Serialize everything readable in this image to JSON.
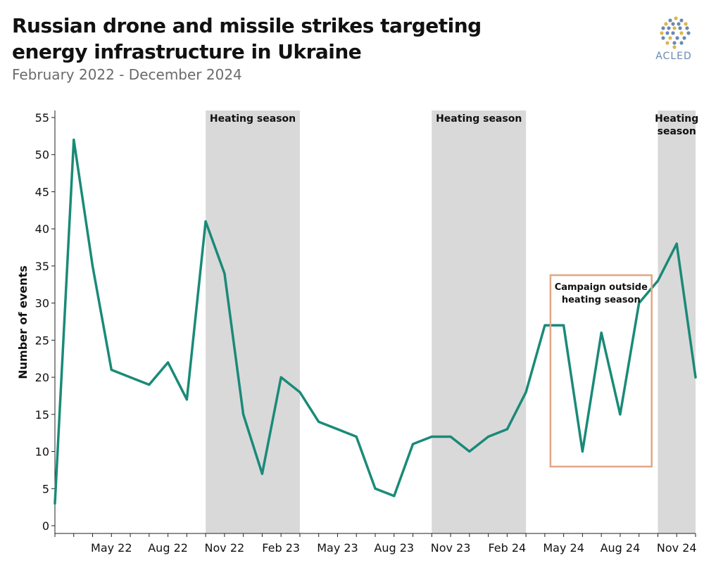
{
  "header": {
    "title": "Russian drone and missile strikes targeting energy infrastructure in Ukraine",
    "subtitle": "February 2022 - December 2024"
  },
  "logo": {
    "text": "ACLED"
  },
  "colors": {
    "line": "#1a8a78",
    "band": "#d9d9d9",
    "box": "#e3a684",
    "logo_blue": "#6a8bb0",
    "logo_gold": "#e0b44a"
  },
  "chart_data": {
    "type": "line",
    "title": "Russian drone and missile strikes targeting energy infrastructure in Ukraine",
    "subtitle": "February 2022 - December 2024",
    "ylabel": "Number of events",
    "ylim": [
      0,
      55
    ],
    "yticks": [
      0,
      5,
      10,
      15,
      20,
      25,
      30,
      35,
      40,
      45,
      50,
      55
    ],
    "xrange": [
      "2022-02",
      "2024-12"
    ],
    "x_tick_labels": [
      "May 22",
      "Aug 22",
      "Nov 22",
      "Feb 23",
      "May 23",
      "Aug 23",
      "Nov 23",
      "Feb 24",
      "May 24",
      "Aug 24",
      "Nov 24"
    ],
    "x_tick_months": [
      "2022-05",
      "2022-08",
      "2022-11",
      "2023-02",
      "2023-05",
      "2023-08",
      "2023-11",
      "2024-02",
      "2024-05",
      "2024-08",
      "2024-11"
    ],
    "grid": false,
    "series": [
      {
        "x": [
          "2022-02",
          "2022-03",
          "2022-04",
          "2022-05",
          "2022-06",
          "2022-07",
          "2022-08",
          "2022-09",
          "2022-10",
          "2022-11",
          "2022-12",
          "2023-01",
          "2023-02",
          "2023-03",
          "2023-04",
          "2023-05",
          "2023-06",
          "2023-07",
          "2023-08",
          "2023-09",
          "2023-10",
          "2023-11",
          "2023-12",
          "2024-01",
          "2024-02",
          "2024-03",
          "2024-04",
          "2024-05",
          "2024-06",
          "2024-07",
          "2024-08",
          "2024-09",
          "2024-10",
          "2024-11",
          "2024-12"
        ],
        "values": [
          3,
          52,
          35,
          21,
          20,
          19,
          22,
          17,
          41,
          34,
          15,
          7,
          20,
          18,
          14,
          13,
          12,
          5,
          4,
          11,
          12,
          12,
          10,
          12,
          13,
          18,
          27,
          27,
          10,
          26,
          15,
          30,
          33,
          38,
          20
        ]
      }
    ],
    "shaded_periods": [
      {
        "label": "Heating season",
        "start": "2022-10",
        "end": "2023-03"
      },
      {
        "label": "Heating season",
        "start": "2023-10",
        "end": "2024-03"
      },
      {
        "label": "Heating season",
        "start": "2024-10",
        "end": "2024-12"
      }
    ],
    "annotation": {
      "text_lines": [
        "Campaign outside",
        "heating season"
      ],
      "start": "2024-04",
      "end": "2024-09"
    }
  }
}
